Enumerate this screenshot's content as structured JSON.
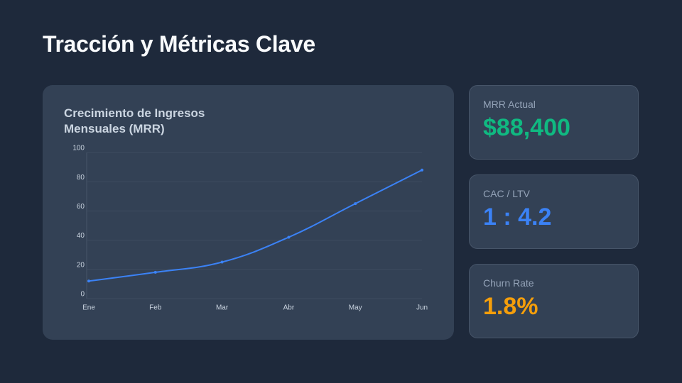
{
  "title": "Tracción y Métricas Clave",
  "chart_data": {
    "type": "line",
    "title": "Crecimiento de Ingresos Mensuales (MRR)",
    "categories": [
      "Ene",
      "Feb",
      "Mar",
      "Abr",
      "May",
      "Jun"
    ],
    "values": [
      12,
      18,
      25,
      42,
      65,
      88
    ],
    "color": "#3b82f6",
    "ylim": [
      0,
      100
    ],
    "yticks": [
      0,
      20,
      40,
      60,
      80,
      100
    ],
    "grid": true
  },
  "metrics": [
    {
      "label": "MRR Actual",
      "value": "$88,400",
      "color": "#10b981"
    },
    {
      "label": "CAC / LTV",
      "value": "1 : 4.2",
      "color": "#3b82f6"
    },
    {
      "label": "Churn Rate",
      "value": "1.8%",
      "color": "#f59e0b"
    }
  ]
}
